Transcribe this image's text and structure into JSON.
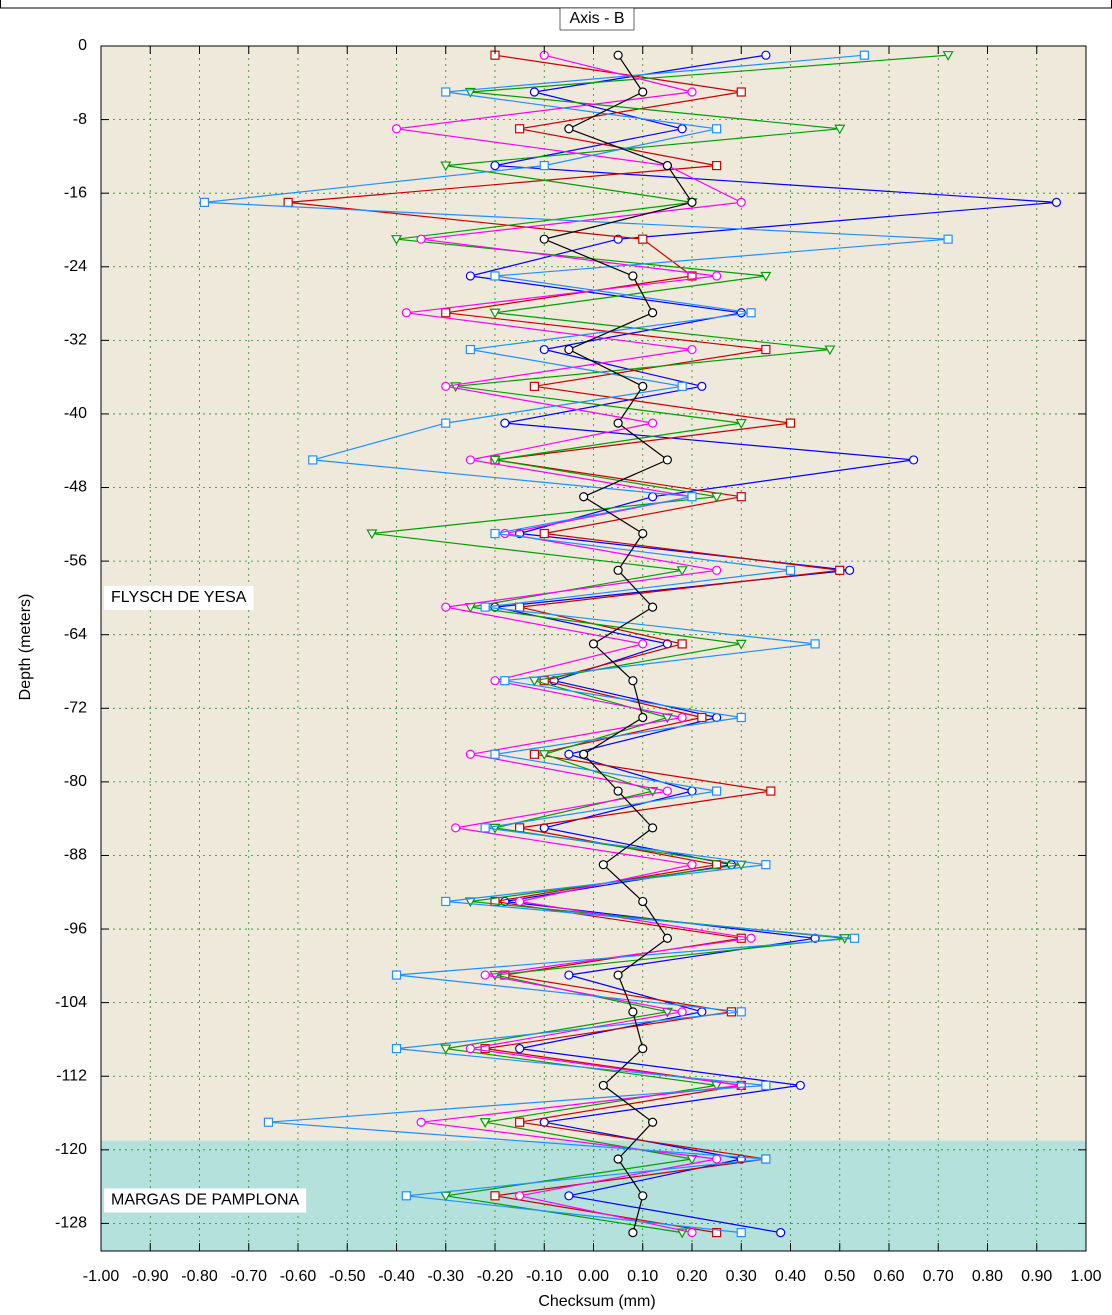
{
  "chart_data": {
    "type": "line",
    "title": "Axis - B",
    "xlabel": "Checksum (mm)",
    "ylabel": "Depth (meters)",
    "xlim": [
      -1,
      1
    ],
    "ylim": [
      -131,
      0
    ],
    "xticks": [
      {
        "value": -1,
        "label": "-1.00"
      },
      {
        "value": -0.9,
        "label": "-0.90"
      },
      {
        "value": -0.8,
        "label": "-0.80"
      },
      {
        "value": -0.7,
        "label": "-0.70"
      },
      {
        "value": -0.6,
        "label": "-0.60"
      },
      {
        "value": -0.5,
        "label": "-0.50"
      },
      {
        "value": -0.4,
        "label": "-0.40"
      },
      {
        "value": -0.3,
        "label": "-0.30"
      },
      {
        "value": -0.2,
        "label": "-0.20"
      },
      {
        "value": -0.1,
        "label": "-0.10"
      },
      {
        "value": 0,
        "label": "0.00"
      },
      {
        "value": 0.1,
        "label": "0.10"
      },
      {
        "value": 0.2,
        "label": "0.20"
      },
      {
        "value": 0.3,
        "label": "0.30"
      },
      {
        "value": 0.4,
        "label": "0.40"
      },
      {
        "value": 0.5,
        "label": "0.50"
      },
      {
        "value": 0.6,
        "label": "0.60"
      },
      {
        "value": 0.7,
        "label": "0.70"
      },
      {
        "value": 0.8,
        "label": "0.80"
      },
      {
        "value": 0.9,
        "label": "0.90"
      },
      {
        "value": 1,
        "label": "1.00"
      }
    ],
    "yticks": [
      0,
      -8,
      -16,
      -24,
      -32,
      -40,
      -48,
      -56,
      -64,
      -72,
      -80,
      -88,
      -96,
      -104,
      -112,
      -120,
      -128
    ],
    "grid": true,
    "background": "#efe9dc",
    "zones": [
      {
        "name": "FLYSCH DE YESA",
        "top": 0,
        "bottom": -119,
        "label_depth": -60,
        "color": "#efe9dc"
      },
      {
        "name": "MARGAS DE PAMPLONA",
        "top": -119,
        "bottom": -131,
        "label_depth": -125.5,
        "color": "#b5e1dd"
      }
    ],
    "y": [
      -1,
      -5,
      -9,
      -13,
      -17,
      -21,
      -25,
      -29,
      -33,
      -37,
      -41,
      -45,
      -49,
      -53,
      -57,
      -61,
      -65,
      -69,
      -73,
      -77,
      -81,
      -85,
      -89,
      -93,
      -97,
      -101,
      -105,
      -109,
      -113,
      -117,
      -121,
      -125,
      -129
    ],
    "series": [
      {
        "color": "#0000ff",
        "marker": "circle",
        "values": [
          0.35,
          -0.12,
          0.18,
          -0.2,
          0.94,
          0.05,
          -0.25,
          0.3,
          -0.1,
          0.22,
          -0.18,
          0.65,
          0.12,
          -0.15,
          0.52,
          -0.2,
          0.15,
          -0.08,
          0.25,
          -0.05,
          0.2,
          -0.1,
          0.28,
          -0.18,
          0.45,
          -0.05,
          0.22,
          -0.15,
          0.42,
          -0.1,
          0.3,
          -0.05,
          0.38
        ]
      },
      {
        "color": "#cc0000",
        "marker": "square",
        "values": [
          -0.2,
          0.3,
          -0.15,
          0.25,
          -0.62,
          0.1,
          0.2,
          -0.3,
          0.35,
          -0.12,
          0.4,
          -0.2,
          0.3,
          -0.1,
          0.5,
          -0.15,
          0.18,
          -0.1,
          0.22,
          -0.12,
          0.36,
          -0.15,
          0.25,
          -0.2,
          0.3,
          -0.18,
          0.28,
          -0.22,
          0.3,
          -0.15,
          0.35,
          -0.2,
          0.25
        ]
      },
      {
        "color": "#00a000",
        "marker": "triangle",
        "values": [
          0.72,
          -0.25,
          0.5,
          -0.3,
          0.2,
          -0.4,
          0.35,
          -0.2,
          0.48,
          -0.28,
          0.3,
          -0.2,
          0.25,
          -0.45,
          0.18,
          -0.25,
          0.3,
          -0.12,
          0.15,
          -0.1,
          0.12,
          -0.2,
          0.3,
          -0.25,
          0.51,
          -0.2,
          0.15,
          -0.3,
          0.25,
          -0.22,
          0.2,
          -0.3,
          0.18
        ]
      },
      {
        "color": "#ff00ff",
        "marker": "circle",
        "values": [
          -0.1,
          0.2,
          -0.4,
          0.15,
          0.3,
          -0.35,
          0.25,
          -0.38,
          0.2,
          -0.3,
          0.12,
          -0.25,
          0.2,
          -0.18,
          0.25,
          -0.3,
          0.1,
          -0.2,
          0.18,
          -0.25,
          0.15,
          -0.28,
          0.2,
          -0.15,
          0.32,
          -0.22,
          0.18,
          -0.25,
          0.3,
          -0.35,
          0.25,
          -0.15,
          0.2
        ]
      },
      {
        "color": "#1e90ff",
        "marker": "square",
        "values": [
          0.55,
          -0.3,
          0.25,
          -0.1,
          -0.79,
          0.72,
          -0.2,
          0.32,
          -0.25,
          0.18,
          -0.3,
          -0.57,
          0.2,
          -0.2,
          0.4,
          -0.22,
          0.45,
          -0.18,
          0.3,
          -0.2,
          0.25,
          -0.22,
          0.35,
          -0.3,
          0.53,
          -0.4,
          0.3,
          -0.4,
          0.35,
          -0.66,
          0.35,
          -0.38,
          0.3
        ]
      },
      {
        "color": "#000000",
        "marker": "circle",
        "values": [
          0.05,
          0.1,
          -0.05,
          0.15,
          0.2,
          -0.1,
          0.08,
          0.12,
          -0.05,
          0.1,
          0.05,
          0.15,
          -0.02,
          0.1,
          0.05,
          0.12,
          0,
          0.08,
          0.1,
          -0.02,
          0.05,
          0.12,
          0.02,
          0.1,
          0.15,
          0.05,
          0.08,
          0.1,
          0.02,
          0.12,
          0.05,
          0.1,
          0.08
        ]
      }
    ]
  }
}
